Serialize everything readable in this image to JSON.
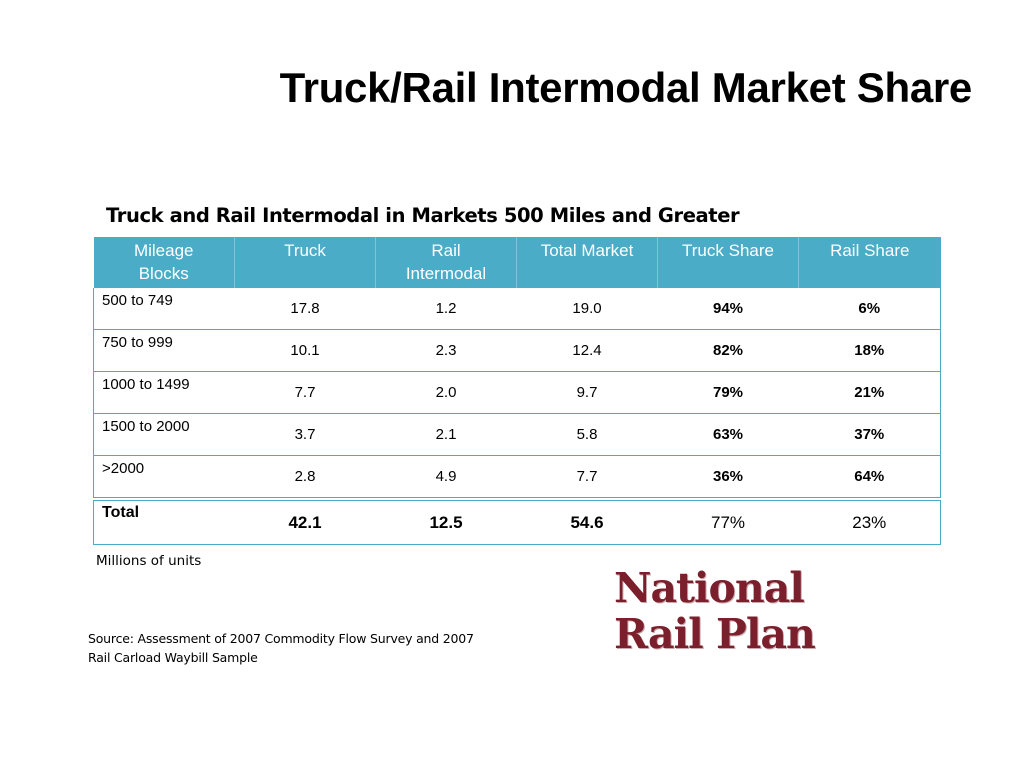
{
  "slide": {
    "title": "Truck/Rail Intermodal Market Share",
    "table_title": "Truck and Rail Intermodal in Markets 500 Miles and Greater",
    "units_note": "Millions of units",
    "source_line1": "Source:  Assessment of 2007 Commodity Flow Survey and 2007",
    "source_line2": "Rail Carload Waybill Sample",
    "logo_line1": "National",
    "logo_line2": "Rail Plan",
    "accent_color": "#4aacc6",
    "logo_color": "#7a1f2b"
  },
  "table": {
    "headers": {
      "mileage_line1": "Mileage",
      "mileage_line2": "Blocks",
      "truck": "Truck",
      "rail_line1": "Rail",
      "rail_line2": "Intermodal",
      "total_market": "Total Market",
      "truck_share": "Truck Share",
      "rail_share": "Rail Share"
    },
    "rows": [
      {
        "block": "500 to 749",
        "truck": "17.8",
        "rail": "1.2",
        "total": "19.0",
        "truck_share": "94%",
        "rail_share": "6%"
      },
      {
        "block": "750 to 999",
        "truck": "10.1",
        "rail": "2.3",
        "total": "12.4",
        "truck_share": "82%",
        "rail_share": "18%"
      },
      {
        "block": "1000 to 1499",
        "truck": "7.7",
        "rail": "2.0",
        "total": "9.7",
        "truck_share": "79%",
        "rail_share": "21%"
      },
      {
        "block": "1500 to 2000",
        "truck": "3.7",
        "rail": "2.1",
        "total": "5.8",
        "truck_share": "63%",
        "rail_share": "37%"
      },
      {
        "block": ">2000",
        "truck": "2.8",
        "rail": "4.9",
        "total": "7.7",
        "truck_share": "36%",
        "rail_share": "64%"
      }
    ],
    "total": {
      "block": "Total",
      "truck": "42.1",
      "rail": "12.5",
      "total": "54.6",
      "truck_share": "77%",
      "rail_share": "23%"
    }
  }
}
